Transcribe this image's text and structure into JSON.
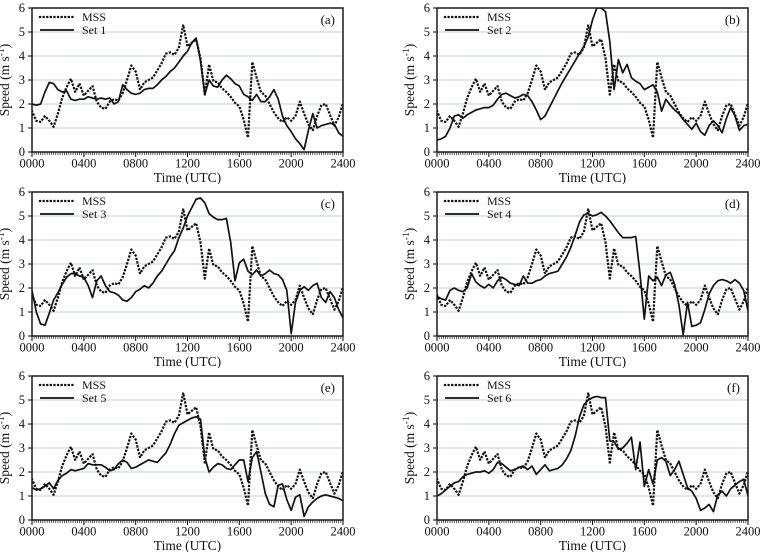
{
  "figure_title": "",
  "chart_data": {
    "type": "line",
    "layout": {
      "rows": 3,
      "cols": 2
    },
    "xlabel": "Time (UTC)",
    "ylabel": "Speed (m s⁻¹)",
    "x_tick_labels": [
      "0000",
      "0400",
      "0800",
      "1200",
      "1600",
      "2000",
      "2400"
    ],
    "x_range_minutes": [
      0,
      1440
    ],
    "x_major_step_minutes": 240,
    "x_minor_step_minutes": 10,
    "ylim": [
      0,
      6
    ],
    "y_ticks": [
      0,
      1,
      2,
      3,
      4,
      5,
      6
    ],
    "grid": "horizontal",
    "grid_color": "#c3cdd4",
    "line_color": "#111111",
    "legend_position": "top-left",
    "sample_step_minutes": 20,
    "reference_series": {
      "name": "MSS",
      "style": "dotted",
      "values": [
        1.7,
        1.3,
        1.25,
        1.5,
        1.3,
        1.05,
        1.6,
        2.25,
        2.7,
        3.05,
        2.5,
        2.85,
        2.35,
        2.55,
        2.75,
        2.1,
        1.85,
        1.8,
        2.1,
        2.2,
        2.15,
        2.45,
        3.0,
        3.6,
        3.35,
        2.6,
        2.9,
        3.0,
        3.1,
        3.4,
        3.7,
        4.1,
        4.15,
        4.05,
        4.35,
        5.3,
        4.4,
        4.55,
        4.7,
        3.9,
        2.4,
        3.65,
        2.95,
        2.9,
        2.65,
        2.5,
        2.3,
        2.05,
        1.9,
        1.35,
        0.6,
        3.75,
        3.1,
        2.5,
        2.35,
        2.0,
        1.65,
        1.4,
        1.25,
        1.45,
        1.3,
        1.5,
        2.1,
        1.6,
        1.15,
        0.9,
        1.5,
        1.95,
        2.0,
        1.55,
        1.1,
        1.45,
        2.05
      ]
    },
    "panels": [
      {
        "label": "(a)",
        "series_name": "Set 1",
        "style": "solid",
        "values": [
          2.0,
          1.95,
          2.0,
          2.5,
          2.9,
          2.85,
          2.6,
          2.5,
          2.55,
          2.2,
          2.15,
          2.2,
          2.2,
          2.3,
          2.25,
          2.2,
          2.25,
          2.2,
          2.25,
          2.0,
          2.1,
          2.8,
          2.6,
          2.45,
          2.4,
          2.45,
          2.6,
          2.65,
          2.65,
          2.8,
          3.0,
          3.15,
          3.35,
          3.5,
          3.75,
          4.0,
          4.2,
          4.55,
          4.75,
          3.8,
          2.4,
          3.0,
          2.75,
          2.7,
          3.0,
          3.2,
          3.05,
          2.85,
          2.75,
          2.4,
          2.3,
          2.15,
          2.4,
          2.1,
          2.1,
          2.3,
          2.6,
          2.2,
          1.5,
          1.1,
          0.85,
          0.55,
          0.35,
          0.1,
          0.9,
          1.6,
          1.0,
          1.1,
          1.15,
          1.2,
          1.15,
          0.8,
          0.65
        ]
      },
      {
        "label": "(b)",
        "series_name": "Set 2",
        "style": "solid",
        "values": [
          0.5,
          0.55,
          0.65,
          1.0,
          1.5,
          1.55,
          1.4,
          1.55,
          1.65,
          1.75,
          1.8,
          1.85,
          1.85,
          1.95,
          2.2,
          2.4,
          2.45,
          2.35,
          2.25,
          2.3,
          2.4,
          2.35,
          2.1,
          1.75,
          1.35,
          1.5,
          1.85,
          2.2,
          2.55,
          2.9,
          3.2,
          3.5,
          3.8,
          4.1,
          4.4,
          4.8,
          5.5,
          6.0,
          6.0,
          5.85,
          4.6,
          2.6,
          3.85,
          3.3,
          3.65,
          3.1,
          2.95,
          2.85,
          2.6,
          2.7,
          2.8,
          2.5,
          1.7,
          2.2,
          1.95,
          1.75,
          1.6,
          1.35,
          1.15,
          0.95,
          1.2,
          0.85,
          0.7,
          1.1,
          1.3,
          1.1,
          0.8,
          1.4,
          1.85,
          1.5,
          0.9,
          1.1,
          1.15
        ]
      },
      {
        "label": "(c)",
        "series_name": "Set 3",
        "style": "solid",
        "values": [
          1.9,
          1.0,
          0.5,
          0.45,
          0.95,
          1.5,
          1.8,
          2.15,
          2.45,
          2.6,
          2.6,
          2.5,
          2.45,
          2.1,
          1.6,
          2.3,
          2.5,
          2.1,
          1.85,
          1.8,
          1.7,
          1.5,
          1.45,
          1.6,
          1.85,
          1.95,
          2.1,
          2.0,
          2.2,
          2.5,
          2.7,
          3.0,
          3.3,
          3.55,
          4.1,
          4.5,
          5.0,
          5.35,
          5.7,
          5.75,
          5.55,
          5.1,
          4.95,
          4.85,
          4.85,
          4.9,
          3.9,
          2.3,
          3.05,
          3.2,
          2.7,
          2.55,
          2.75,
          2.5,
          2.6,
          2.75,
          2.6,
          2.55,
          2.35,
          1.9,
          0.1,
          1.4,
          1.9,
          2.05,
          1.9,
          2.1,
          2.2,
          1.6,
          1.4,
          1.85,
          1.6,
          1.1,
          0.75
        ]
      },
      {
        "label": "(d)",
        "series_name": "Set 4",
        "style": "solid",
        "values": [
          1.65,
          1.55,
          1.5,
          1.9,
          2.0,
          1.9,
          1.85,
          2.0,
          2.6,
          2.25,
          2.1,
          2.0,
          2.15,
          2.0,
          2.3,
          2.45,
          2.35,
          2.2,
          2.15,
          2.1,
          2.5,
          2.2,
          2.2,
          2.3,
          2.35,
          2.5,
          2.6,
          2.65,
          2.7,
          3.0,
          3.3,
          3.7,
          4.2,
          4.75,
          5.05,
          5.1,
          5.0,
          5.05,
          5.15,
          5.0,
          4.8,
          4.55,
          4.3,
          4.1,
          4.1,
          4.1,
          4.15,
          2.6,
          0.7,
          2.5,
          2.3,
          2.45,
          2.1,
          2.55,
          2.65,
          2.15,
          1.3,
          0.05,
          1.4,
          0.4,
          0.45,
          0.55,
          1.1,
          1.75,
          2.1,
          2.3,
          2.35,
          2.3,
          2.2,
          2.35,
          2.2,
          1.9,
          1.05
        ]
      },
      {
        "label": "(e)",
        "series_name": "Set 5",
        "style": "solid",
        "values": [
          1.35,
          1.25,
          1.3,
          1.4,
          1.55,
          1.3,
          1.65,
          1.85,
          1.95,
          2.1,
          2.05,
          2.1,
          2.15,
          2.35,
          2.3,
          2.3,
          2.3,
          2.2,
          2.05,
          2.1,
          2.35,
          2.5,
          2.4,
          2.15,
          2.2,
          2.3,
          2.4,
          2.5,
          2.45,
          2.4,
          2.6,
          2.8,
          3.15,
          3.6,
          3.95,
          4.05,
          4.15,
          4.25,
          4.3,
          4.2,
          2.6,
          2.0,
          2.2,
          2.35,
          2.3,
          2.15,
          2.1,
          2.3,
          2.5,
          2.5,
          1.6,
          2.6,
          2.85,
          2.0,
          1.1,
          0.65,
          0.55,
          1.45,
          1.5,
          0.85,
          0.4,
          0.95,
          1.05,
          0.15,
          0.55,
          0.75,
          0.9,
          1.0,
          1.05,
          1.0,
          0.95,
          0.9,
          0.8
        ]
      },
      {
        "label": "(f)",
        "series_name": "Set 6",
        "style": "solid",
        "values": [
          1.0,
          1.1,
          1.25,
          1.4,
          1.55,
          1.6,
          1.8,
          1.9,
          1.95,
          2.0,
          2.0,
          2.05,
          1.95,
          2.1,
          2.4,
          2.35,
          2.2,
          2.05,
          2.1,
          2.2,
          2.25,
          2.1,
          2.25,
          1.9,
          2.1,
          2.3,
          2.05,
          2.1,
          2.15,
          2.3,
          2.55,
          2.9,
          3.5,
          4.3,
          4.8,
          5.0,
          5.1,
          5.15,
          5.1,
          5.1,
          3.3,
          3.25,
          2.95,
          3.0,
          3.2,
          3.45,
          2.1,
          3.25,
          1.4,
          2.1,
          1.5,
          2.5,
          2.6,
          2.45,
          1.85,
          2.1,
          2.45,
          1.9,
          1.35,
          1.2,
          0.9,
          0.4,
          0.5,
          0.65,
          0.35,
          1.05,
          1.2,
          1.0,
          1.3,
          1.45,
          1.6,
          1.7,
          1.0
        ]
      }
    ]
  }
}
